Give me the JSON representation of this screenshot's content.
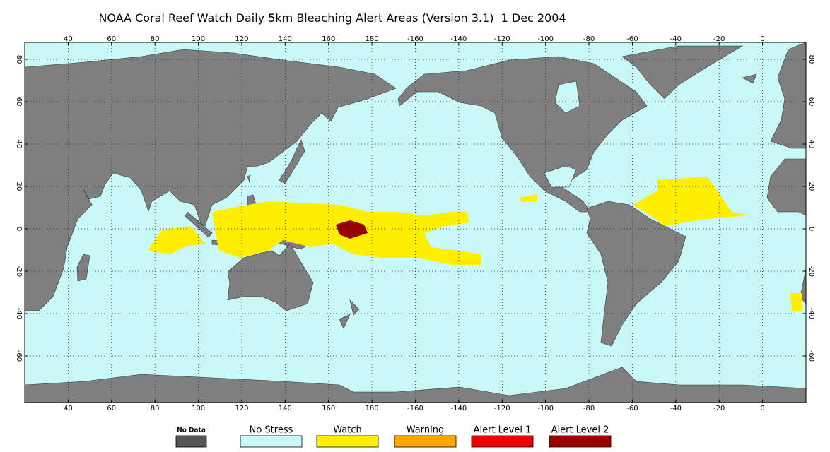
{
  "title": "NOAA Coral Reef Watch Daily 5km Bleaching Alert Areas (Version 3.1)  1 Dec 2004",
  "map": {
    "xlim": [
      20,
      380
    ],
    "ylim": [
      -82,
      88
    ],
    "xticks": [
      40,
      60,
      80,
      100,
      120,
      140,
      160,
      180,
      -160,
      -140,
      -120,
      -100,
      -80,
      -60,
      -40,
      -20,
      0
    ],
    "yticks": [
      80,
      60,
      40,
      20,
      0,
      -20,
      -40,
      -60
    ],
    "grid": true
  },
  "legend": [
    {
      "label": "No Data",
      "color": "#555555"
    },
    {
      "label": "No Stress",
      "color": "#c8f8f8"
    },
    {
      "label": "Watch",
      "color": "#ffee00"
    },
    {
      "label": "Warning",
      "color": "#ffa500"
    },
    {
      "label": "Alert Level 1",
      "color": "#ee0000"
    },
    {
      "label": "Alert Level 2",
      "color": "#990000"
    }
  ]
}
